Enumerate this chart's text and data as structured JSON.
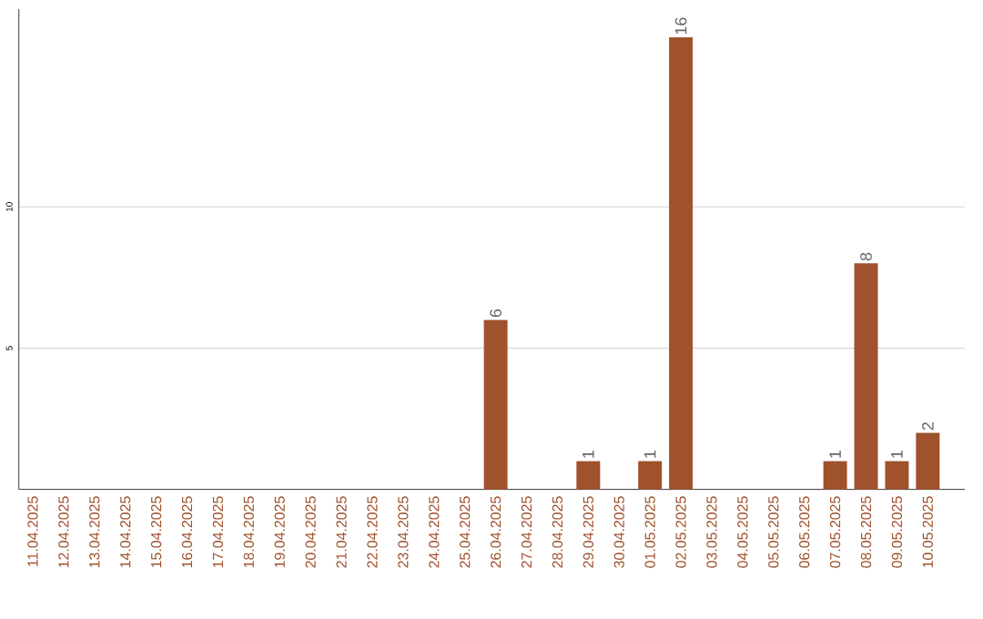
{
  "chart_data": {
    "type": "bar",
    "categories": [
      "11.04.2025",
      "12.04.2025",
      "13.04.2025",
      "14.04.2025",
      "15.04.2025",
      "16.04.2025",
      "17.04.2025",
      "18.04.2025",
      "19.04.2025",
      "20.04.2025",
      "21.04.2025",
      "22.04.2025",
      "23.04.2025",
      "24.04.2025",
      "25.04.2025",
      "26.04.2025",
      "27.04.2025",
      "28.04.2025",
      "29.04.2025",
      "30.04.2025",
      "01.05.2025",
      "02.05.2025",
      "03.05.2025",
      "04.05.2025",
      "05.05.2025",
      "06.05.2025",
      "07.05.2025",
      "08.05.2025",
      "09.05.2025",
      "10.05.2025"
    ],
    "values": [
      0,
      0,
      0,
      0,
      0,
      0,
      0,
      0,
      0,
      0,
      0,
      0,
      0,
      0,
      0,
      6,
      0,
      0,
      1,
      0,
      1,
      16,
      0,
      0,
      0,
      0,
      1,
      8,
      1,
      2
    ],
    "value_labels": [
      null,
      null,
      null,
      null,
      null,
      null,
      null,
      null,
      null,
      null,
      null,
      null,
      null,
      null,
      null,
      "6",
      null,
      null,
      "1",
      null,
      "1",
      "16",
      null,
      null,
      null,
      null,
      "1",
      "8",
      "1",
      "2"
    ],
    "color": "#a0522d",
    "ylim": [
      0,
      17
    ],
    "yticks": [
      5,
      10
    ],
    "grid": "y"
  }
}
